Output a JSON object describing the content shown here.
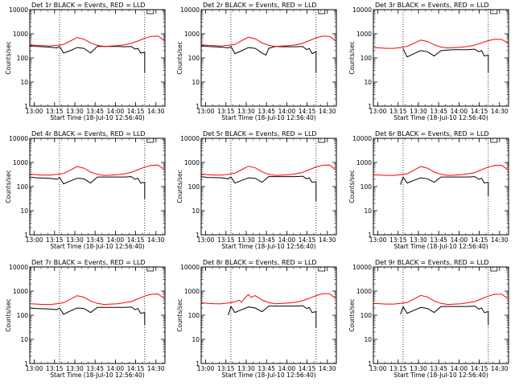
{
  "layout_grid": {
    "rows": 3,
    "cols": 3
  },
  "common": {
    "xlabel": "Start Time (18-Jul-10 12:56:40)",
    "ylabel": "Counts/sec",
    "x_tick_labels": [
      "13:00",
      "13:15",
      "13:30",
      "13:45",
      "14:00",
      "14:15",
      "14:30"
    ],
    "y_tick_labels": [
      "1",
      "10",
      "100",
      "1000",
      "10000"
    ],
    "colors": {
      "events": "#000000",
      "lld": "#ff0000",
      "axes": "#000000",
      "background": "#ffffff"
    }
  },
  "chart_data": [
    {
      "type": "line",
      "title": "Det 1r BLACK = Events, RED = LLD",
      "x_unit": "minutes since 12:56:40",
      "xlim": [
        0,
        100
      ],
      "ylim": [
        1,
        10000
      ],
      "yscale": "log",
      "xticks": [
        3.33,
        18.33,
        33.33,
        48.33,
        63.33,
        78.33,
        93.33
      ],
      "vlines": [
        22,
        85
      ],
      "series": [
        {
          "name": "BLACK = Events",
          "color": "#000000",
          "x": [
            0,
            5,
            15,
            20,
            22,
            25,
            30,
            35,
            40,
            45,
            50,
            55,
            60,
            65,
            70,
            75,
            78,
            80,
            82,
            85,
            85
          ],
          "y": [
            320,
            300,
            280,
            260,
            300,
            160,
            200,
            270,
            250,
            160,
            300,
            300,
            300,
            300,
            290,
            300,
            230,
            250,
            160,
            170,
            25
          ]
        },
        {
          "name": "RED = LLD",
          "color": "#ff0000",
          "x": [
            0,
            5,
            10,
            15,
            20,
            25,
            30,
            35,
            40,
            45,
            50,
            55,
            60,
            65,
            70,
            75,
            80,
            85,
            90,
            95,
            100
          ],
          "y": [
            350,
            330,
            320,
            310,
            330,
            360,
            500,
            700,
            600,
            420,
            330,
            300,
            310,
            320,
            350,
            400,
            500,
            650,
            780,
            800,
            500
          ]
        }
      ]
    },
    {
      "type": "line",
      "title": "Det 2r BLACK = Events, RED = LLD",
      "x_unit": "minutes since 12:56:40",
      "xlim": [
        0,
        100
      ],
      "ylim": [
        1,
        10000
      ],
      "yscale": "log",
      "xticks": [
        3.33,
        18.33,
        33.33,
        48.33,
        63.33,
        78.33,
        93.33
      ],
      "vlines": [
        22,
        85
      ],
      "series": [
        {
          "name": "BLACK = Events",
          "color": "#000000",
          "x": [
            0,
            5,
            15,
            20,
            22,
            25,
            30,
            35,
            40,
            45,
            48,
            50,
            55,
            60,
            65,
            70,
            75,
            78,
            80,
            82,
            85,
            85
          ],
          "y": [
            320,
            300,
            280,
            260,
            300,
            150,
            200,
            270,
            250,
            160,
            130,
            250,
            300,
            290,
            290,
            290,
            300,
            220,
            250,
            150,
            180,
            25
          ]
        },
        {
          "name": "RED = LLD",
          "color": "#ff0000",
          "x": [
            0,
            5,
            10,
            15,
            20,
            25,
            30,
            35,
            40,
            45,
            50,
            55,
            60,
            65,
            70,
            75,
            80,
            85,
            90,
            95,
            100
          ],
          "y": [
            350,
            330,
            320,
            310,
            330,
            360,
            520,
            720,
            620,
            420,
            330,
            300,
            310,
            320,
            350,
            400,
            520,
            680,
            800,
            780,
            480
          ]
        }
      ]
    },
    {
      "type": "line",
      "title": "Det 3r BLACK = Events, RED = LLD",
      "x_unit": "minutes since 12:56:40",
      "xlim": [
        0,
        100
      ],
      "ylim": [
        1,
        10000
      ],
      "yscale": "log",
      "xticks": [
        3.33,
        18.33,
        33.33,
        48.33,
        63.33,
        78.33,
        93.33
      ],
      "vlines": [
        22,
        85
      ],
      "series": [
        {
          "name": "BLACK = Events",
          "color": "#000000",
          "x": [
            22,
            25,
            30,
            35,
            40,
            45,
            50,
            55,
            60,
            65,
            70,
            75,
            78,
            80,
            82,
            85,
            85
          ],
          "y": [
            240,
            110,
            150,
            200,
            180,
            120,
            200,
            210,
            220,
            220,
            220,
            230,
            180,
            200,
            120,
            130,
            25
          ]
        },
        {
          "name": "RED = LLD",
          "color": "#ff0000",
          "x": [
            0,
            5,
            10,
            15,
            20,
            25,
            30,
            35,
            40,
            45,
            50,
            55,
            60,
            65,
            70,
            75,
            80,
            85,
            90,
            95,
            100
          ],
          "y": [
            270,
            260,
            250,
            250,
            270,
            300,
            400,
            550,
            480,
            350,
            280,
            260,
            270,
            280,
            300,
            340,
            420,
            520,
            600,
            580,
            400
          ]
        }
      ]
    },
    {
      "type": "line",
      "title": "Det 4r BLACK = Events, RED = LLD",
      "x_unit": "minutes since 12:56:40",
      "xlim": [
        0,
        100
      ],
      "ylim": [
        1,
        10000
      ],
      "yscale": "log",
      "xticks": [
        3.33,
        18.33,
        33.33,
        48.33,
        63.33,
        78.33,
        93.33
      ],
      "vlines": [
        22,
        85
      ],
      "series": [
        {
          "name": "BLACK = Events",
          "color": "#000000",
          "x": [
            0,
            5,
            15,
            20,
            22,
            25,
            30,
            35,
            40,
            45,
            50,
            55,
            60,
            65,
            70,
            75,
            78,
            80,
            82,
            85,
            85
          ],
          "y": [
            250,
            230,
            220,
            200,
            240,
            130,
            170,
            220,
            210,
            140,
            250,
            250,
            250,
            250,
            250,
            260,
            200,
            220,
            140,
            150,
            30
          ]
        },
        {
          "name": "RED = LLD",
          "color": "#ff0000",
          "x": [
            0,
            5,
            10,
            15,
            20,
            25,
            30,
            35,
            40,
            45,
            50,
            55,
            60,
            65,
            70,
            75,
            80,
            85,
            90,
            95,
            100
          ],
          "y": [
            330,
            310,
            300,
            300,
            320,
            350,
            480,
            680,
            580,
            400,
            320,
            290,
            300,
            310,
            340,
            390,
            500,
            640,
            760,
            780,
            480
          ]
        }
      ]
    },
    {
      "type": "line",
      "title": "Det 5r BLACK = Events, RED = LLD",
      "x_unit": "minutes since 12:56:40",
      "xlim": [
        0,
        100
      ],
      "ylim": [
        1,
        10000
      ],
      "yscale": "log",
      "xticks": [
        3.33,
        18.33,
        33.33,
        48.33,
        63.33,
        78.33,
        93.33
      ],
      "vlines": [
        22,
        85
      ],
      "series": [
        {
          "name": "BLACK = Events",
          "color": "#000000",
          "x": [
            0,
            5,
            15,
            20,
            22,
            25,
            30,
            35,
            40,
            45,
            50,
            55,
            60,
            65,
            70,
            75,
            78,
            80,
            82,
            85,
            85
          ],
          "y": [
            260,
            240,
            230,
            210,
            250,
            140,
            180,
            230,
            220,
            150,
            260,
            260,
            260,
            260,
            260,
            270,
            210,
            230,
            150,
            160,
            25
          ]
        },
        {
          "name": "RED = LLD",
          "color": "#ff0000",
          "x": [
            0,
            5,
            10,
            15,
            20,
            25,
            30,
            35,
            40,
            45,
            50,
            55,
            60,
            65,
            70,
            75,
            80,
            85,
            90,
            95,
            100
          ],
          "y": [
            330,
            310,
            300,
            300,
            320,
            360,
            500,
            700,
            600,
            410,
            320,
            290,
            300,
            310,
            340,
            390,
            500,
            650,
            770,
            780,
            470
          ]
        }
      ]
    },
    {
      "type": "line",
      "title": "Det 6r BLACK = Events, RED = LLD",
      "x_unit": "minutes since 12:56:40",
      "xlim": [
        0,
        100
      ],
      "ylim": [
        1,
        10000
      ],
      "yscale": "log",
      "xticks": [
        3.33,
        18.33,
        33.33,
        48.33,
        63.33,
        78.33,
        93.33
      ],
      "vlines": [
        22,
        85
      ],
      "series": [
        {
          "name": "BLACK = Events",
          "color": "#000000",
          "x": [
            20,
            22,
            25,
            30,
            35,
            40,
            45,
            50,
            55,
            60,
            65,
            70,
            75,
            78,
            80,
            82,
            85,
            85
          ],
          "y": [
            120,
            250,
            140,
            180,
            230,
            210,
            150,
            250,
            250,
            250,
            250,
            250,
            260,
            200,
            220,
            140,
            150,
            40
          ]
        },
        {
          "name": "RED = LLD",
          "color": "#ff0000",
          "x": [
            0,
            5,
            10,
            15,
            20,
            25,
            30,
            35,
            40,
            45,
            50,
            55,
            60,
            65,
            70,
            75,
            80,
            85,
            90,
            95,
            100
          ],
          "y": [
            310,
            300,
            290,
            290,
            310,
            340,
            480,
            680,
            580,
            400,
            320,
            290,
            300,
            310,
            340,
            380,
            500,
            640,
            760,
            760,
            470
          ]
        }
      ]
    },
    {
      "type": "line",
      "title": "Det 7r BLACK = Events, RED = LLD",
      "x_unit": "minutes since 12:56:40",
      "xlim": [
        0,
        100
      ],
      "ylim": [
        1,
        10000
      ],
      "yscale": "log",
      "xticks": [
        3.33,
        18.33,
        33.33,
        48.33,
        63.33,
        78.33,
        93.33
      ],
      "vlines": [
        22,
        85
      ],
      "series": [
        {
          "name": "BLACK = Events",
          "color": "#000000",
          "x": [
            0,
            5,
            15,
            20,
            22,
            25,
            30,
            35,
            40,
            45,
            50,
            55,
            60,
            65,
            70,
            75,
            78,
            80,
            82,
            85,
            85
          ],
          "y": [
            200,
            190,
            180,
            170,
            200,
            110,
            150,
            200,
            190,
            130,
            210,
            210,
            210,
            210,
            210,
            220,
            170,
            190,
            120,
            130,
            40
          ]
        },
        {
          "name": "RED = LLD",
          "color": "#ff0000",
          "x": [
            0,
            5,
            10,
            15,
            20,
            25,
            30,
            35,
            40,
            45,
            50,
            55,
            60,
            65,
            70,
            75,
            80,
            85,
            90,
            95,
            100
          ],
          "y": [
            300,
            290,
            280,
            280,
            300,
            330,
            460,
            650,
            560,
            390,
            310,
            280,
            290,
            300,
            330,
            370,
            480,
            620,
            740,
            760,
            460
          ]
        }
      ]
    },
    {
      "type": "line",
      "title": "Det 8r BLACK = Events, RED = LLD",
      "x_unit": "minutes since 12:56:40",
      "xlim": [
        0,
        100
      ],
      "ylim": [
        1,
        10000
      ],
      "yscale": "log",
      "xticks": [
        3.33,
        18.33,
        33.33,
        48.33,
        63.33,
        78.33,
        93.33
      ],
      "vlines": [
        22,
        85
      ],
      "series": [
        {
          "name": "BLACK = Events",
          "color": "#000000",
          "x": [
            20,
            22,
            25,
            30,
            35,
            40,
            45,
            50,
            55,
            60,
            65,
            70,
            75,
            78,
            80,
            82,
            85,
            85
          ],
          "y": [
            100,
            230,
            130,
            170,
            220,
            200,
            140,
            240,
            240,
            240,
            240,
            240,
            250,
            190,
            210,
            130,
            140,
            30
          ]
        },
        {
          "name": "RED = LLD",
          "color": "#ff0000",
          "x": [
            0,
            5,
            10,
            15,
            20,
            25,
            28,
            30,
            32,
            35,
            37,
            40,
            45,
            50,
            55,
            60,
            65,
            70,
            75,
            80,
            85,
            90,
            95,
            100
          ],
          "y": [
            330,
            310,
            300,
            300,
            320,
            360,
            420,
            350,
            500,
            720,
            550,
            650,
            430,
            330,
            300,
            310,
            320,
            350,
            400,
            510,
            650,
            780,
            780,
            470
          ]
        }
      ]
    },
    {
      "type": "line",
      "title": "Det 9r BLACK = Events, RED = LLD",
      "x_unit": "minutes since 12:56:40",
      "xlim": [
        0,
        100
      ],
      "ylim": [
        1,
        10000
      ],
      "yscale": "log",
      "xticks": [
        3.33,
        18.33,
        33.33,
        48.33,
        63.33,
        78.33,
        93.33
      ],
      "vlines": [
        22,
        85
      ],
      "series": [
        {
          "name": "BLACK = Events",
          "color": "#000000",
          "x": [
            20,
            22,
            25,
            30,
            35,
            40,
            45,
            50,
            55,
            60,
            65,
            70,
            75,
            78,
            80,
            82,
            85,
            85
          ],
          "y": [
            110,
            220,
            120,
            160,
            210,
            190,
            130,
            230,
            230,
            230,
            230,
            230,
            240,
            180,
            200,
            130,
            140,
            40
          ]
        },
        {
          "name": "RED = LLD",
          "color": "#ff0000",
          "x": [
            0,
            5,
            10,
            15,
            20,
            25,
            30,
            35,
            40,
            45,
            50,
            55,
            60,
            65,
            70,
            75,
            80,
            85,
            90,
            95,
            100
          ],
          "y": [
            310,
            300,
            290,
            290,
            310,
            340,
            470,
            660,
            570,
            390,
            310,
            280,
            290,
            300,
            330,
            370,
            480,
            620,
            740,
            740,
            460
          ]
        }
      ]
    }
  ]
}
